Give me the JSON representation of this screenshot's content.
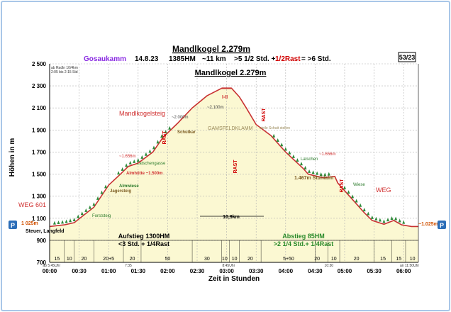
{
  "header": {
    "title": "Mandlkogel 2.279m",
    "region": "Gosaukamm",
    "date": "14.8.23",
    "elevation_gain": "1385HM",
    "distance": "~11 km",
    "time_up": ">5 1/2 Std. +",
    "time_rest": "1/2Rast",
    "time_total": "= >6 Std.",
    "page": "53/23"
  },
  "chart_data": {
    "type": "line",
    "title": "Mandlkogel 2.279m",
    "xlabel": "Zeit in Stunden",
    "ylabel": "Höhen in m",
    "xlim": [
      0,
      375
    ],
    "ylim": [
      700,
      2500
    ],
    "y_ticks": [
      700,
      900,
      1100,
      1300,
      1500,
      1700,
      1900,
      2100,
      2300,
      2500
    ],
    "y_tick_labels": [
      "700",
      "900",
      "1 100",
      "1 300",
      "1 500",
      "1 700",
      "1 900",
      "2 100",
      "2 300",
      "2 500"
    ],
    "x_ticks": [
      0,
      30,
      60,
      90,
      120,
      150,
      180,
      210,
      240,
      270,
      300,
      330,
      360
    ],
    "x_tick_labels": [
      "00:00",
      "00:30",
      "01:00",
      "01:30",
      "02:00",
      "02:30",
      "03:00",
      "03:30",
      "04:00",
      "04:30",
      "05:00",
      "05:30",
      "06:00"
    ],
    "grid": true,
    "series": [
      {
        "x": [
          0,
          15,
          25,
          45,
          60,
          72,
          80,
          90,
          105,
          115,
          130,
          145,
          160,
          175,
          185,
          193,
          200,
          210,
          225,
          240,
          258,
          263,
          278,
          290,
          293,
          305,
          320,
          328,
          340,
          350,
          358,
          368,
          375
        ],
        "y": [
          1025,
          1040,
          1060,
          1200,
          1400,
          1500,
          1570,
          1600,
          1700,
          1830,
          1960,
          2100,
          2210,
          2279,
          2279,
          2200,
          2100,
          1950,
          1850,
          1700,
          1550,
          1500,
          1467,
          1480,
          1420,
          1300,
          1150,
          1080,
          1045,
          1080,
          1040,
          1025,
          1025
        ]
      }
    ],
    "distance_label": "10,9km",
    "start_label": "Steuer, Langfeld",
    "start_height": "1 025m",
    "end_height": "~1.025m",
    "parking_label": "P",
    "places": [
      {
        "text": "WEG 601",
        "color": "#d03030"
      },
      {
        "text": "Mandlkogelsteig",
        "color": "#d03030"
      },
      {
        "text": "Jagersteig",
        "color": "#7a5a20"
      },
      {
        "text": "Almhütte ~1.500m",
        "color": "#7a5a20"
      },
      {
        "text": "Almwiese",
        "color": "#2a7a2a"
      },
      {
        "text": "Latschengasse",
        "color": "#2a7a2a"
      },
      {
        "text": "~1.656m",
        "color": "#d03030"
      },
      {
        "text": "~2.000m",
        "color": "#444444"
      },
      {
        "text": "Schutkar",
        "color": "#7a5a20"
      },
      {
        "text": "~2.100m",
        "color": "#444444"
      },
      {
        "text": "GAMSFELDKLAMM",
        "color": "#9a8a5a"
      },
      {
        "text": "steile Schutt stellen",
        "color": "#9a8a5a"
      },
      {
        "text": "Latschen",
        "color": "#2a7a2a"
      },
      {
        "text": "~1.656m",
        "color": "#d03030"
      },
      {
        "text": "1.467m Stuhlalm",
        "color": "#7a5a20"
      },
      {
        "text": "Wiese",
        "color": "#2a7a2a"
      },
      {
        "text": "WEG",
        "color": "#d03030"
      },
      {
        "text": "Forststeig",
        "color": "#2a7a2a"
      },
      {
        "text": "I-II",
        "color": "#d03030"
      }
    ],
    "rast_labels": [
      "RAST",
      "RAST",
      "RAST",
      "RAST"
    ],
    "ascent_summary": {
      "title": "Aufstieg 1300HM",
      "line": "<3 Std. + 1/4Rast"
    },
    "descent_summary": {
      "title": "Abstieg 85HM",
      "line": ">2 1/4 Std.+ 1/4Rast"
    },
    "segment_minutes": [
      {
        "text": "15",
        "at": 7.5
      },
      {
        "text": "10",
        "at": 20
      },
      {
        "text": "20",
        "at": 35
      },
      {
        "text": "20+5",
        "at": 60
      },
      {
        "text": "20",
        "at": 84
      },
      {
        "text": "50",
        "at": 120
      },
      {
        "text": "30",
        "at": 160
      },
      {
        "text": "10",
        "at": 178
      },
      {
        "text": "10",
        "at": 188
      },
      {
        "text": "20",
        "at": 204
      },
      {
        "text": "5+50",
        "at": 243
      },
      {
        "text": "20",
        "at": 272
      },
      {
        "text": "10",
        "at": 289
      },
      {
        "text": "20",
        "at": 312
      },
      {
        "text": "15",
        "at": 339
      },
      {
        "text": "15",
        "at": 355
      },
      {
        "text": "10",
        "at": 369
      }
    ],
    "time_marks": [
      {
        "text": "ab 5:45Uhr",
        "at": 2
      },
      {
        "text": "7:35",
        "at": 80
      },
      {
        "text": "8:45Uhr",
        "at": 182
      },
      {
        "text": "10:30",
        "at": 284
      },
      {
        "text": "an 11:50Uhr",
        "at": 366
      }
    ],
    "small_notes": [
      "ab Radln 10/4km",
      "2:05 bis 2:15 Std"
    ]
  }
}
